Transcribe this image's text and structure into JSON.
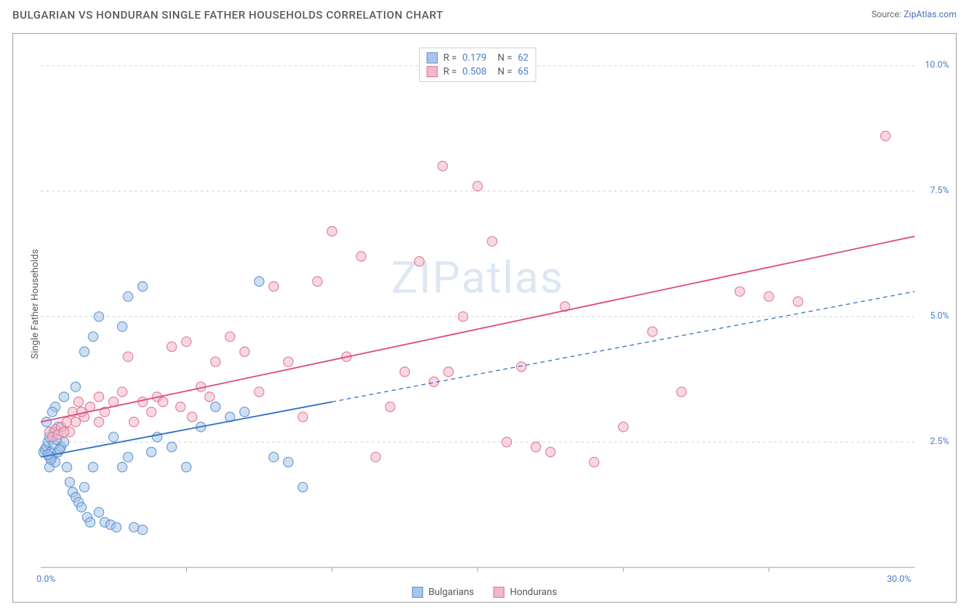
{
  "title": "BULGARIAN VS HONDURAN SINGLE FATHER HOUSEHOLDS CORRELATION CHART",
  "source_label": "Source:",
  "source_name": "ZipAtlas.com",
  "watermark": "ZIPatlas",
  "y_axis_label": "Single Father Households",
  "chart": {
    "type": "scatter",
    "xlim": [
      0,
      30
    ],
    "ylim": [
      0,
      10.5
    ],
    "x_ticks": [
      0,
      30
    ],
    "x_tick_labels": [
      "0.0%",
      "30.0%"
    ],
    "y_ticks": [
      2.5,
      5.0,
      7.5,
      10.0
    ],
    "y_tick_labels": [
      "2.5%",
      "5.0%",
      "7.5%",
      "10.0%"
    ],
    "grid_color": "#d0d0d0",
    "background_color": "#ffffff",
    "axis_label_color": "#4a7bc8",
    "marker_radius": 7,
    "marker_opacity": 0.55,
    "marker_stroke_opacity": 0.9,
    "line_width": 2,
    "x_minor_ticks": [
      5,
      10,
      15,
      20,
      25
    ]
  },
  "series": [
    {
      "name": "Bulgarians",
      "label": "Bulgarians",
      "color_fill": "#a8c5e8",
      "color_stroke": "#5a8fd0",
      "line_color": "#3a72c8",
      "r_value": "0.179",
      "n_value": "62",
      "regression": {
        "x1": 0,
        "y1": 2.2,
        "x2": 10,
        "y2": 3.3,
        "x_extend": 30,
        "y_extend": 5.5
      },
      "points": [
        [
          0.1,
          2.3
        ],
        [
          0.15,
          2.35
        ],
        [
          0.2,
          2.4
        ],
        [
          0.25,
          2.5
        ],
        [
          0.3,
          2.6
        ],
        [
          0.35,
          2.3
        ],
        [
          0.4,
          2.2
        ],
        [
          0.45,
          2.7
        ],
        [
          0.3,
          2.0
        ],
        [
          0.5,
          2.1
        ],
        [
          0.6,
          2.3
        ],
        [
          0.7,
          2.4
        ],
        [
          0.8,
          2.5
        ],
        [
          0.9,
          2.0
        ],
        [
          1.0,
          1.7
        ],
        [
          1.1,
          1.5
        ],
        [
          1.2,
          1.4
        ],
        [
          1.3,
          1.3
        ],
        [
          1.4,
          1.2
        ],
        [
          1.5,
          1.6
        ],
        [
          1.6,
          1.0
        ],
        [
          1.7,
          0.9
        ],
        [
          1.8,
          2.0
        ],
        [
          2.0,
          1.1
        ],
        [
          2.2,
          0.9
        ],
        [
          2.4,
          0.85
        ],
        [
          2.6,
          0.8
        ],
        [
          2.8,
          2.0
        ],
        [
          3.0,
          2.2
        ],
        [
          3.2,
          0.8
        ],
        [
          3.5,
          0.75
        ],
        [
          3.8,
          2.3
        ],
        [
          0.5,
          3.2
        ],
        [
          0.8,
          3.4
        ],
        [
          1.2,
          3.6
        ],
        [
          1.5,
          4.3
        ],
        [
          1.8,
          4.6
        ],
        [
          2.0,
          5.0
        ],
        [
          2.5,
          2.6
        ],
        [
          2.8,
          4.8
        ],
        [
          3.0,
          5.4
        ],
        [
          3.5,
          5.6
        ],
        [
          4.0,
          2.6
        ],
        [
          4.5,
          2.4
        ],
        [
          5.0,
          2.0
        ],
        [
          5.5,
          2.8
        ],
        [
          6.0,
          3.2
        ],
        [
          6.5,
          3.0
        ],
        [
          7.0,
          3.1
        ],
        [
          7.5,
          5.7
        ],
        [
          8.0,
          2.2
        ],
        [
          8.5,
          2.1
        ],
        [
          9.0,
          1.6
        ],
        [
          0.2,
          2.9
        ],
        [
          0.4,
          3.1
        ],
        [
          0.6,
          2.8
        ],
        [
          0.3,
          2.2
        ],
        [
          0.35,
          2.15
        ],
        [
          0.25,
          2.25
        ],
        [
          0.45,
          2.45
        ],
        [
          0.55,
          2.55
        ],
        [
          0.65,
          2.35
        ]
      ]
    },
    {
      "name": "Hondurans",
      "label": "Hondurans",
      "color_fill": "#f0b8c8",
      "color_stroke": "#e07090",
      "line_color": "#e05080",
      "r_value": "0.508",
      "n_value": "65",
      "regression": {
        "x1": 0,
        "y1": 2.9,
        "x2": 30,
        "y2": 6.6,
        "x_extend": 30,
        "y_extend": 6.6
      },
      "points": [
        [
          0.3,
          2.7
        ],
        [
          0.5,
          2.75
        ],
        [
          0.7,
          2.8
        ],
        [
          0.9,
          2.9
        ],
        [
          1.1,
          3.1
        ],
        [
          1.3,
          3.3
        ],
        [
          1.5,
          3.0
        ],
        [
          1.7,
          3.2
        ],
        [
          2.0,
          3.4
        ],
        [
          2.2,
          3.1
        ],
        [
          2.5,
          3.3
        ],
        [
          2.8,
          3.5
        ],
        [
          3.0,
          4.2
        ],
        [
          3.5,
          3.3
        ],
        [
          4.0,
          3.4
        ],
        [
          4.5,
          4.4
        ],
        [
          5.0,
          4.5
        ],
        [
          5.5,
          3.6
        ],
        [
          6.0,
          4.1
        ],
        [
          6.5,
          4.6
        ],
        [
          7.0,
          4.3
        ],
        [
          7.5,
          3.5
        ],
        [
          8.0,
          5.6
        ],
        [
          8.5,
          4.1
        ],
        [
          9.0,
          3.0
        ],
        [
          9.5,
          5.7
        ],
        [
          10.0,
          6.7
        ],
        [
          10.5,
          4.2
        ],
        [
          11.0,
          6.2
        ],
        [
          11.5,
          2.2
        ],
        [
          12.0,
          3.2
        ],
        [
          12.5,
          3.9
        ],
        [
          13.0,
          6.1
        ],
        [
          13.5,
          3.7
        ],
        [
          13.8,
          8.0
        ],
        [
          14.0,
          3.9
        ],
        [
          14.5,
          5.0
        ],
        [
          15.0,
          7.6
        ],
        [
          15.5,
          6.5
        ],
        [
          16.0,
          2.5
        ],
        [
          16.5,
          4.0
        ],
        [
          17.0,
          2.4
        ],
        [
          17.5,
          2.3
        ],
        [
          18.0,
          5.2
        ],
        [
          19.0,
          2.1
        ],
        [
          20.0,
          2.8
        ],
        [
          21.0,
          4.7
        ],
        [
          22.0,
          3.5
        ],
        [
          24.0,
          5.5
        ],
        [
          25.0,
          5.4
        ],
        [
          26.0,
          5.3
        ],
        [
          29.0,
          8.6
        ],
        [
          2.0,
          2.9
        ],
        [
          1.0,
          2.7
        ],
        [
          1.2,
          2.9
        ],
        [
          1.4,
          3.1
        ],
        [
          0.4,
          2.6
        ],
        [
          0.6,
          2.65
        ],
        [
          0.8,
          2.7
        ],
        [
          3.2,
          2.9
        ],
        [
          3.8,
          3.1
        ],
        [
          4.2,
          3.3
        ],
        [
          4.8,
          3.2
        ],
        [
          5.2,
          3.0
        ],
        [
          5.8,
          3.4
        ]
      ]
    }
  ],
  "r_legend": {
    "r_label": "R =",
    "n_label": "N ="
  }
}
